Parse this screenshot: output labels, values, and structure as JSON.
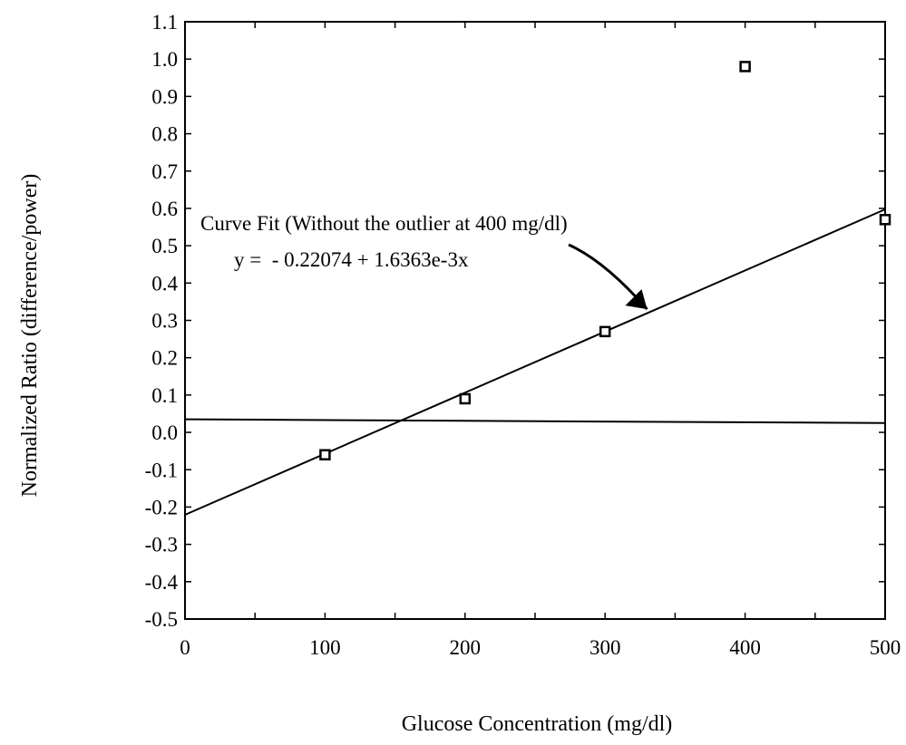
{
  "chart_data": {
    "type": "scatter",
    "xlabel": "Glucose Concentration (mg/dl)",
    "ylabel": "Normalized Ratio (difference/power)",
    "xlim": [
      0,
      500
    ],
    "ylim": [
      -0.5,
      1.1
    ],
    "x_ticks": [
      "0",
      "100",
      "200",
      "300",
      "400",
      "500"
    ],
    "y_ticks": [
      "-0.5",
      "-0.4",
      "-0.3",
      "-0.2",
      "-0.1",
      "0.0",
      "0.1",
      "0.2",
      "0.3",
      "0.4",
      "0.5",
      "0.6",
      "0.7",
      "0.8",
      "0.9",
      "1.0",
      "1.1"
    ],
    "points": [
      {
        "x": 100,
        "y": -0.06
      },
      {
        "x": 200,
        "y": 0.09
      },
      {
        "x": 300,
        "y": 0.27
      },
      {
        "x": 400,
        "y": 0.98
      },
      {
        "x": 500,
        "y": 0.57
      }
    ],
    "fit_line": {
      "intercept": -0.22074,
      "slope": 0.0016363,
      "x_range": [
        0,
        500
      ]
    },
    "horizontal_line": {
      "y_start": 0.035,
      "y_end": 0.025
    },
    "annotation": {
      "line1": "Curve Fit (Without the outlier at 400 mg/dl)",
      "line2": "y =  - 0.22074 + 1.6363e-3x",
      "arrow_target": {
        "x": 330,
        "y": 0.33
      }
    },
    "grid": false
  }
}
